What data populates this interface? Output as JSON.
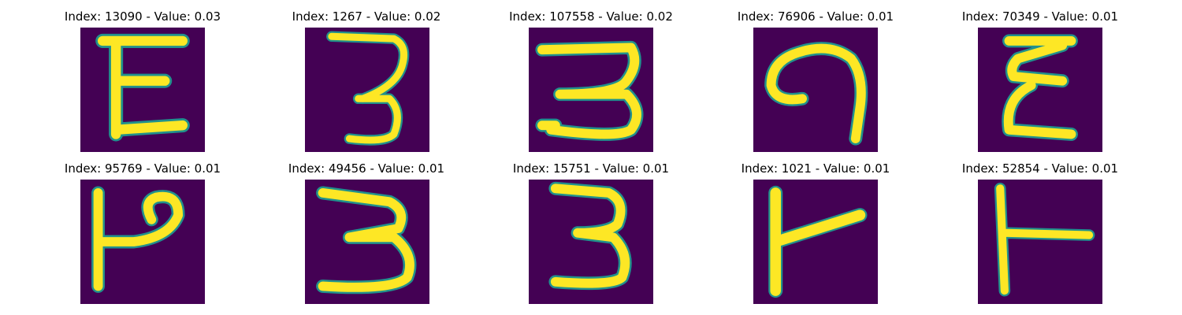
{
  "panels": [
    {
      "title": "Index: 13090 - Value: 0.03",
      "glyph": "glyph-E"
    },
    {
      "title": "Index: 1267 - Value: 0.02",
      "glyph": "glyph-3"
    },
    {
      "title": "Index: 107558 - Value: 0.02",
      "glyph": "glyph-3"
    },
    {
      "title": "Index: 76906 - Value: 0.01",
      "glyph": "glyph-loop"
    },
    {
      "title": "Index: 70349 - Value: 0.01",
      "glyph": "glyph-E"
    },
    {
      "title": "Index: 95769 - Value: 0.01",
      "glyph": "glyph-P-rotated"
    },
    {
      "title": "Index: 49456 - Value: 0.01",
      "glyph": "glyph-3"
    },
    {
      "title": "Index: 15751 - Value: 0.01",
      "glyph": "glyph-3"
    },
    {
      "title": "Index: 1021 - Value: 0.01",
      "glyph": "glyph-T-rotated"
    },
    {
      "title": "Index: 52854 - Value: 0.01",
      "glyph": "glyph-T-rotated"
    }
  ],
  "colors": {
    "background": "#440154",
    "stroke": "#fde725",
    "edge": "#21918c"
  }
}
